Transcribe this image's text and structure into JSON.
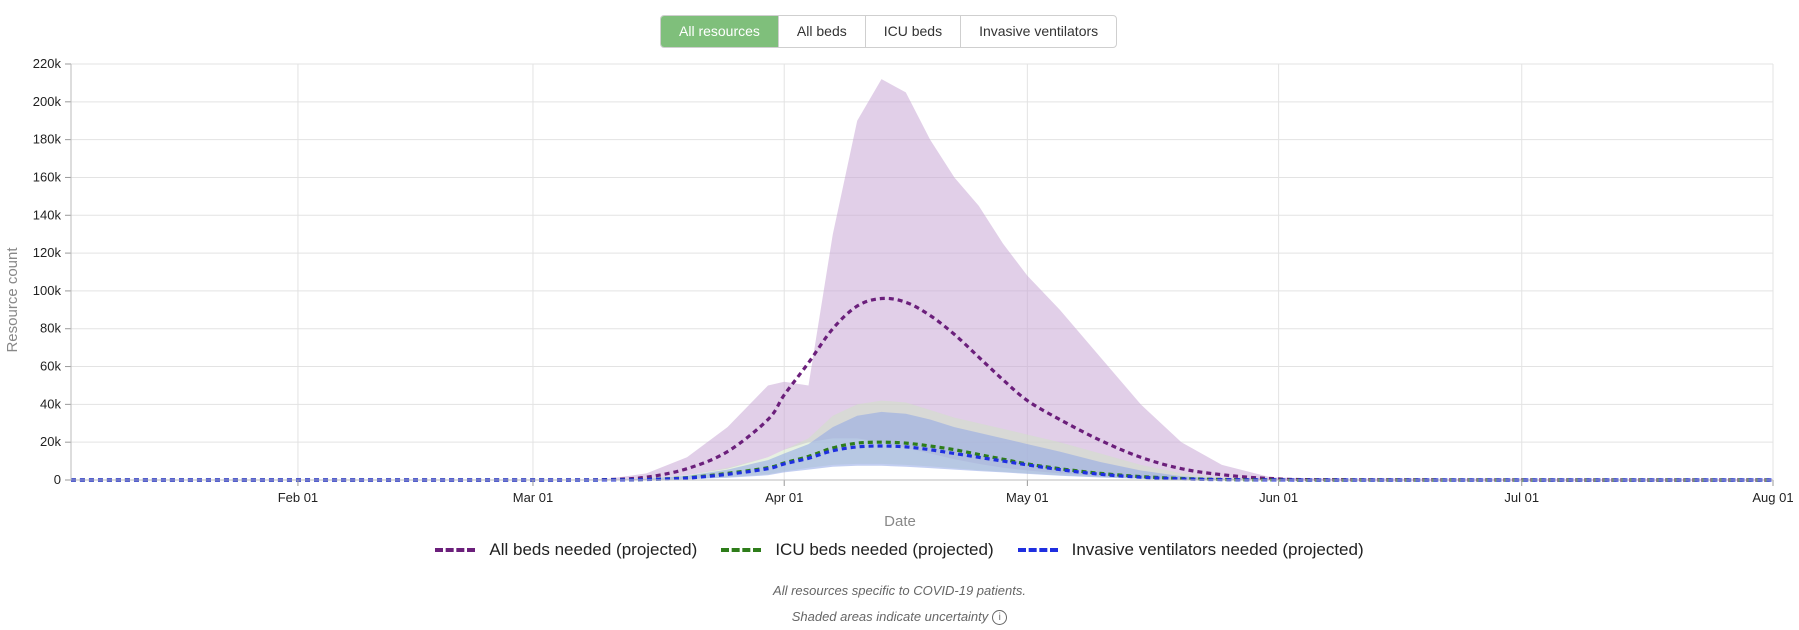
{
  "tabs": [
    {
      "label": "All resources",
      "active": true
    },
    {
      "label": "All beds",
      "active": false
    },
    {
      "label": "ICU beds",
      "active": false
    },
    {
      "label": "Invasive ventilators",
      "active": false
    }
  ],
  "chart_data": {
    "type": "line",
    "xlabel": "Date",
    "ylabel": "Resource count",
    "x_ticks": [
      "Feb 01",
      "Mar 01",
      "Apr 01",
      "May 01",
      "Jun 01",
      "Jul 01",
      "Aug 01"
    ],
    "y_ticks": [
      "0",
      "20k",
      "40k",
      "60k",
      "80k",
      "100k",
      "120k",
      "140k",
      "160k",
      "180k",
      "200k",
      "220k"
    ],
    "xlim": [
      "2020-01-04",
      "2020-08-01"
    ],
    "ylim": [
      0,
      220000
    ],
    "grid": true,
    "legend_position": "bottom",
    "x": [
      "2020-01-04",
      "2020-03-01",
      "2020-03-10",
      "2020-03-15",
      "2020-03-20",
      "2020-03-25",
      "2020-03-30",
      "2020-04-01",
      "2020-04-04",
      "2020-04-07",
      "2020-04-10",
      "2020-04-13",
      "2020-04-16",
      "2020-04-19",
      "2020-04-22",
      "2020-04-25",
      "2020-04-28",
      "2020-05-01",
      "2020-05-05",
      "2020-05-10",
      "2020-05-15",
      "2020-05-20",
      "2020-05-25",
      "2020-05-31",
      "2020-06-10",
      "2020-08-01"
    ],
    "series": [
      {
        "name": "All beds needed (projected)",
        "color": "#6b1f7b",
        "values": [
          0,
          0,
          200,
          1500,
          6000,
          15000,
          32000,
          45000,
          62000,
          80000,
          92000,
          96000,
          94000,
          87000,
          77000,
          65000,
          53000,
          42000,
          32000,
          21000,
          12000,
          6000,
          2800,
          800,
          100,
          0
        ],
        "lower": [
          0,
          0,
          0,
          300,
          2500,
          6000,
          12000,
          16000,
          20000,
          22000,
          22000,
          20000,
          17000,
          14000,
          11000,
          8500,
          6500,
          5000,
          3500,
          2000,
          1000,
          400,
          150,
          30,
          0,
          0
        ],
        "upper": [
          0,
          0,
          500,
          3500,
          12000,
          28000,
          50000,
          52000,
          50000,
          130000,
          190000,
          212000,
          205000,
          180000,
          160000,
          145000,
          125000,
          108000,
          90000,
          65000,
          40000,
          20000,
          8000,
          1500,
          100,
          0
        ],
        "band_color": "#c8a8d6"
      },
      {
        "name": "ICU beds needed (projected)",
        "color": "#2e7d1a",
        "values": [
          0,
          0,
          40,
          300,
          1200,
          3500,
          6500,
          9000,
          12500,
          17000,
          19500,
          20000,
          19500,
          18000,
          16000,
          13500,
          11000,
          8500,
          6000,
          3500,
          1800,
          800,
          300,
          80,
          0,
          0
        ],
        "lower": [
          0,
          0,
          0,
          100,
          500,
          1500,
          3000,
          4500,
          6500,
          8000,
          8500,
          8500,
          8000,
          7200,
          6200,
          5200,
          4300,
          3500,
          2500,
          1500,
          800,
          300,
          100,
          20,
          0,
          0
        ],
        "upper": [
          0,
          0,
          100,
          700,
          2500,
          6500,
          12000,
          16000,
          22000,
          34000,
          40000,
          42000,
          41000,
          37000,
          33000,
          30000,
          27000,
          24000,
          20000,
          14000,
          8000,
          3500,
          1200,
          300,
          0,
          0
        ],
        "band_color": "#cfe3c4"
      },
      {
        "name": "Invasive ventilators needed (projected)",
        "color": "#1f2fe0",
        "values": [
          0,
          0,
          30,
          250,
          1000,
          3000,
          6000,
          8500,
          11500,
          15500,
          17500,
          18000,
          17500,
          16000,
          14000,
          12000,
          10000,
          8000,
          5500,
          3000,
          1500,
          600,
          200,
          60,
          0,
          0
        ],
        "lower": [
          0,
          0,
          0,
          80,
          400,
          1200,
          2500,
          4000,
          5500,
          7000,
          7500,
          7500,
          7000,
          6300,
          5500,
          4700,
          4000,
          3200,
          2200,
          1300,
          600,
          200,
          70,
          10,
          0,
          0
        ],
        "upper": [
          0,
          0,
          80,
          600,
          2200,
          5500,
          10500,
          14000,
          19000,
          28000,
          34000,
          36000,
          35000,
          32000,
          28000,
          25000,
          22000,
          19000,
          15000,
          9500,
          5000,
          2000,
          700,
          150,
          0,
          0
        ],
        "band_color": "#8fa6e6"
      }
    ]
  },
  "footnote_1": "All resources specific to COVID-19 patients.",
  "footnote_2": "Shaded areas indicate uncertainty",
  "info_icon": "info-icon"
}
